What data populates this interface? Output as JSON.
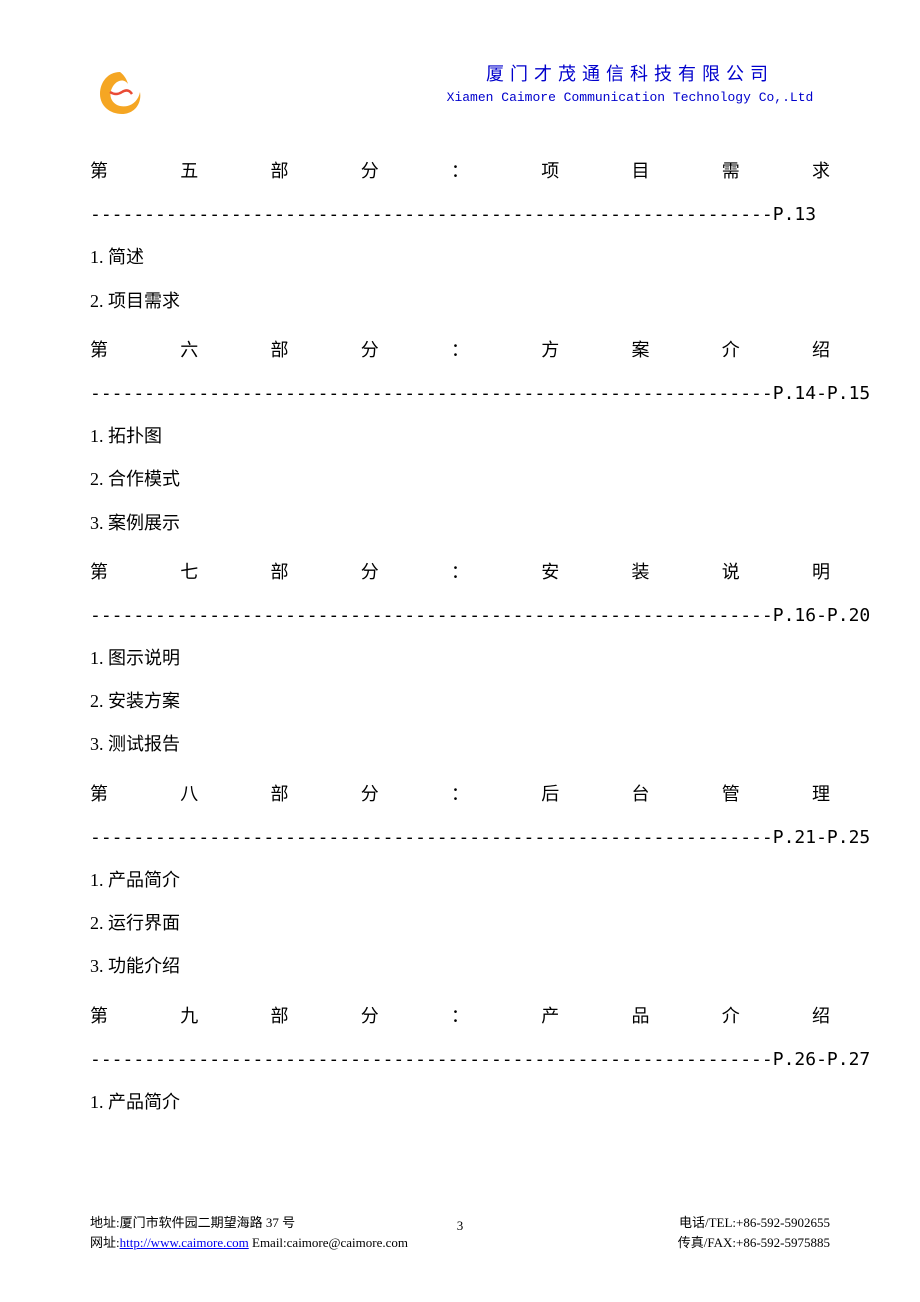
{
  "header": {
    "company_cn": "厦门才茂通信科技有限公司",
    "company_en": "Xiamen Caimore Communication Technology Co,.Ltd"
  },
  "logo": {
    "colors": {
      "orange": "#f5a623",
      "red": "#e94b35"
    }
  },
  "sections": [
    {
      "title_chars": [
        "第",
        "五",
        "部",
        "分",
        "：",
        "项",
        "目",
        "需",
        "求"
      ],
      "page_ref": "P.13",
      "items": [
        "1. 简述",
        "2. 项目需求"
      ]
    },
    {
      "title_chars": [
        "第",
        "六",
        "部",
        "分",
        "：",
        "方",
        "案",
        "介",
        "绍"
      ],
      "page_ref": "P.14-P.15",
      "items": [
        "1. 拓扑图",
        "2. 合作模式",
        "3. 案例展示"
      ]
    },
    {
      "title_chars": [
        "第",
        "七",
        "部",
        "分",
        "：",
        "安",
        "装",
        "说",
        "明"
      ],
      "page_ref": "P.16-P.20",
      "items": [
        "1. 图示说明",
        "2. 安装方案",
        "3. 测试报告"
      ]
    },
    {
      "title_chars": [
        "第",
        "八",
        "部",
        "分",
        "：",
        "后",
        "台",
        "管",
        "理"
      ],
      "page_ref": "P.21-P.25",
      "items": [
        "1. 产品简介",
        "2. 运行界面",
        "3. 功能介绍"
      ]
    },
    {
      "title_chars": [
        "第",
        "九",
        "部",
        "分",
        "：",
        "产",
        "品",
        "介",
        "绍"
      ],
      "page_ref": "P.26-P.27",
      "items": [
        "1. 产品简介"
      ]
    }
  ],
  "dash_prefix": "---------------------------------------------------------------",
  "footer": {
    "address": "地址:厦门市软件园二期望海路 37 号",
    "tel": "电话/TEL:+86-592-5902655",
    "web_label": "网址:",
    "web_url": "http://www.caimore.com",
    "email": " Email:caimore@caimore.com",
    "fax": "传真/FAX:+86-592-5975885",
    "page_number": "3"
  }
}
